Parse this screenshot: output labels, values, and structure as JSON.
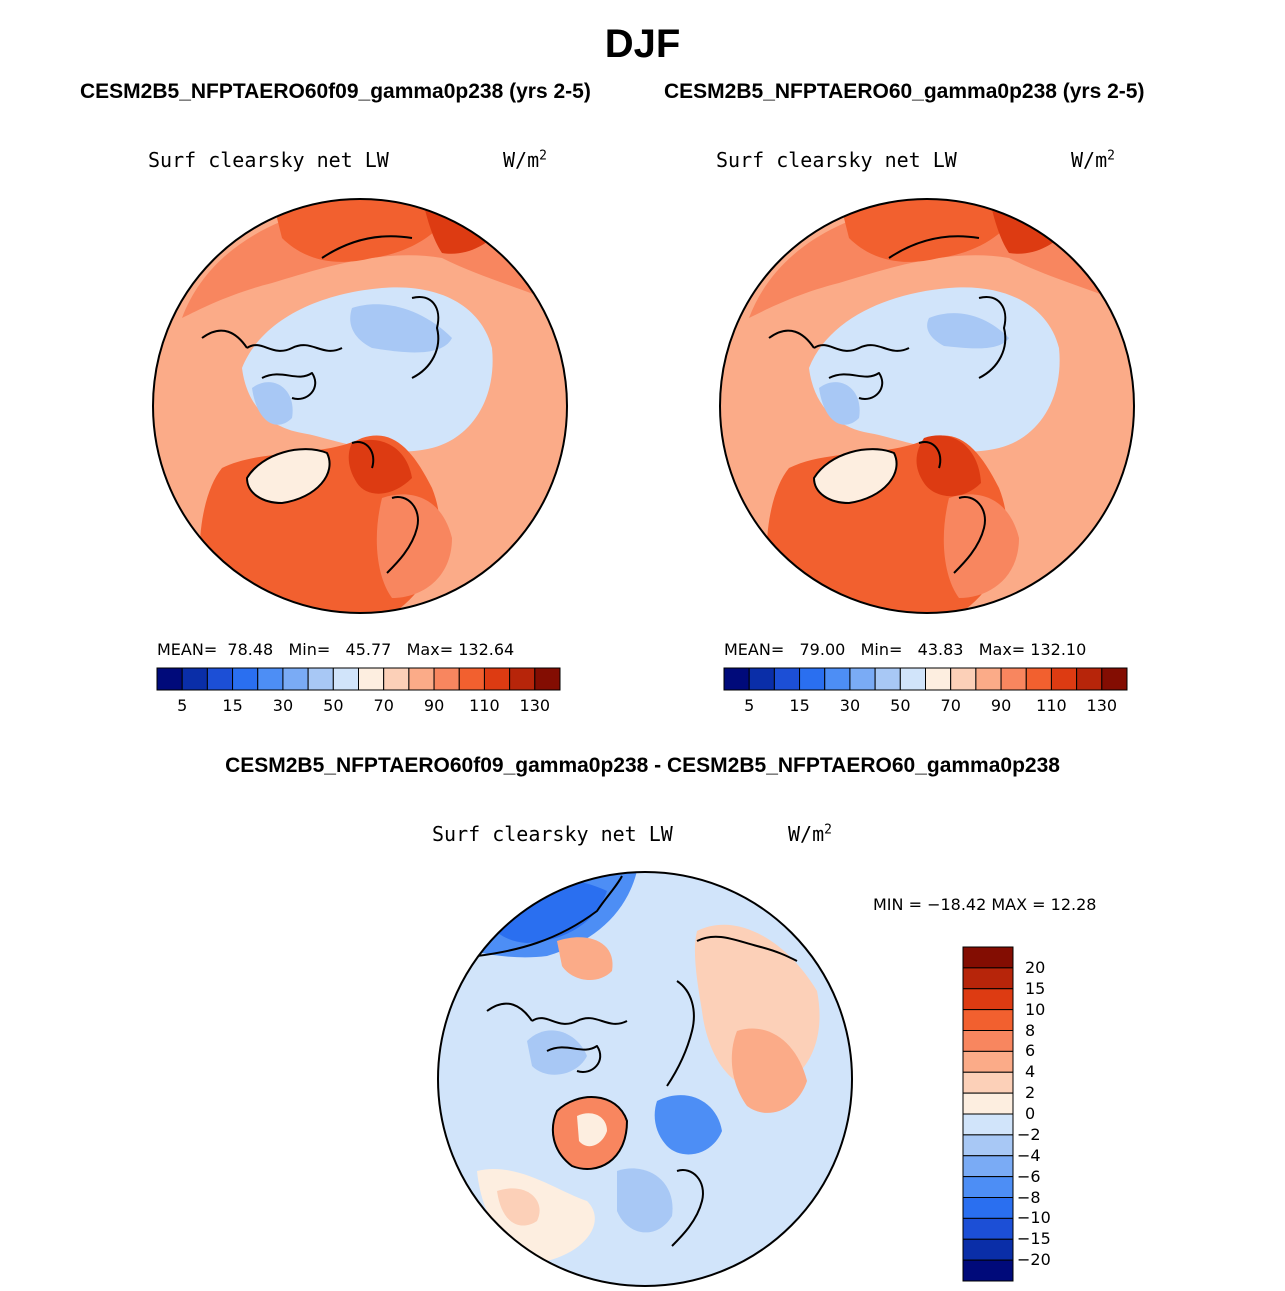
{
  "figure": {
    "season": "DJF",
    "case1_title": "CESM2B5_NFPTAERO60f09_gamma0p238 (yrs 2-5)",
    "case2_title": "CESM2B5_NFPTAERO60_gamma0p238 (yrs 2-5)",
    "diff_title": "CESM2B5_NFPTAERO60f09_gamma0p238 - CESM2B5_NFPTAERO60_gamma0p238"
  },
  "colors": {
    "abs_levels": [
      "#000a7a",
      "#0a2ea8",
      "#1c4fd6",
      "#2a6ff0",
      "#4d8ef5",
      "#7aabf5",
      "#a8c8f5",
      "#d1e4fa",
      "#fdeee0",
      "#fcd0b8",
      "#fbab88",
      "#f8865f",
      "#f2602f",
      "#dd3b12",
      "#b7250a",
      "#830d02"
    ],
    "diff_levels": [
      "#000a7a",
      "#0a2ea8",
      "#1c4fd6",
      "#2a6ff0",
      "#4d8ef5",
      "#7aabf5",
      "#a8c8f5",
      "#d1e4fa",
      "#fdeee0",
      "#fcd0b8",
      "#fbab88",
      "#f8865f",
      "#f2602f",
      "#dd3b12",
      "#b7250a",
      "#830d02"
    ]
  },
  "panel1": {
    "variable": "Surf clearsky net LW",
    "units_base": "W/m",
    "units_sup": "2",
    "mean_label": "MEAN=",
    "mean": "78.48",
    "min_label": "Min=",
    "min": "45.77",
    "max_label": "Max=",
    "max": "132.64"
  },
  "panel2": {
    "variable": "Surf clearsky net LW",
    "units_base": "W/m",
    "units_sup": "2",
    "mean_label": "MEAN=",
    "mean": "79.00",
    "min_label": "Min=",
    "min": "43.83",
    "max_label": "Max=",
    "max": "132.10"
  },
  "panel3": {
    "variable": "Surf clearsky net LW",
    "units_base": "W/m",
    "units_sup": "2",
    "minmax_text": "MIN = −18.42 MAX =  12.28"
  },
  "chart_data": [
    {
      "type": "heatmap",
      "title": "Surf clearsky net LW",
      "units": "W/m2",
      "projection": "north polar stereographic",
      "case": "CESM2B5_NFPTAERO60f09_gamma0p238 (yrs 2-5)",
      "stats": {
        "mean": 78.48,
        "min": 45.77,
        "max": 132.64
      },
      "colorbar_levels": [
        5,
        10,
        15,
        20,
        30,
        40,
        50,
        60,
        70,
        80,
        90,
        100,
        110,
        120,
        130
      ],
      "colorbar_tick_labels": [
        "5",
        "15",
        "30",
        "50",
        "70",
        "90",
        "110",
        "130"
      ]
    },
    {
      "type": "heatmap",
      "title": "Surf clearsky net LW",
      "units": "W/m2",
      "projection": "north polar stereographic",
      "case": "CESM2B5_NFPTAERO60_gamma0p238 (yrs 2-5)",
      "stats": {
        "mean": 79.0,
        "min": 43.83,
        "max": 132.1
      },
      "colorbar_levels": [
        5,
        10,
        15,
        20,
        30,
        40,
        50,
        60,
        70,
        80,
        90,
        100,
        110,
        120,
        130
      ],
      "colorbar_tick_labels": [
        "5",
        "15",
        "30",
        "50",
        "70",
        "90",
        "110",
        "130"
      ]
    },
    {
      "type": "heatmap",
      "title": "Surf clearsky net LW",
      "units": "W/m2",
      "projection": "north polar stereographic",
      "case": "CESM2B5_NFPTAERO60f09_gamma0p238 - CESM2B5_NFPTAERO60_gamma0p238",
      "stats": {
        "min": -18.42,
        "max": 12.28
      },
      "colorbar_levels": [
        -20,
        -15,
        -10,
        -8,
        -6,
        -4,
        -2,
        0,
        2,
        4,
        6,
        8,
        10,
        15,
        20
      ],
      "colorbar_tick_labels": [
        "20",
        "15",
        "10",
        "8",
        "6",
        "4",
        "2",
        "0",
        "−2",
        "−4",
        "−6",
        "−8",
        "−10",
        "−15",
        "−20"
      ]
    }
  ]
}
